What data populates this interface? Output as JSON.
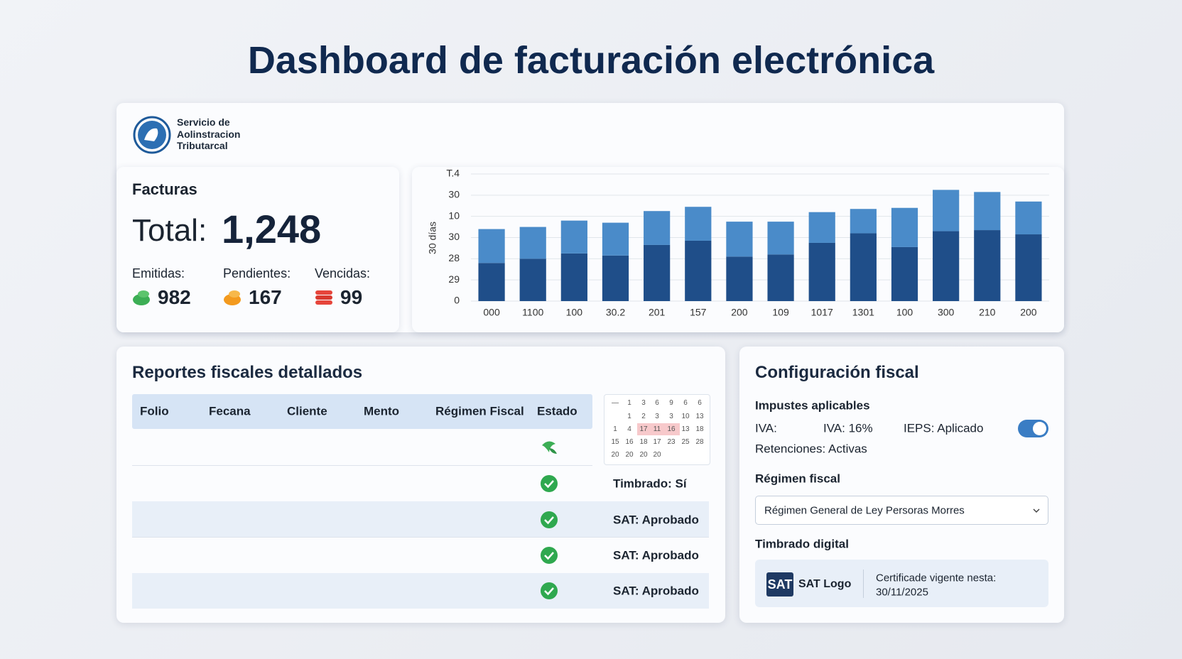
{
  "title": "Dashboard de facturación electrónica",
  "logo": {
    "lines": [
      "Servicio de",
      "Aolinstracion",
      "Tributarcal"
    ]
  },
  "kpi": {
    "title": "Facturas",
    "total_label": "Total:",
    "total": "1,248",
    "items": [
      {
        "label": "Emitidas:",
        "value": 982
      },
      {
        "label": "Pendientes:",
        "value": 167
      },
      {
        "label": "Vencidas:",
        "value": 99
      }
    ]
  },
  "chart_data": {
    "type": "stacked_bar",
    "y_label": "30 días",
    "categories": [
      "000",
      "1100",
      "100",
      "30.2",
      "201",
      "157",
      "200",
      "109",
      "1017",
      "1301",
      "100",
      "300",
      "210",
      "200"
    ],
    "series": [
      {
        "color": "#1f4e89",
        "values": [
          1.8,
          2.0,
          2.25,
          2.15,
          2.65,
          2.85,
          2.1,
          2.2,
          2.75,
          3.2,
          2.55,
          3.3,
          3.35,
          3.15
        ]
      },
      {
        "color": "#4a8bc9",
        "values": [
          1.6,
          1.5,
          1.55,
          1.55,
          1.6,
          1.6,
          1.65,
          1.55,
          1.45,
          1.15,
          1.85,
          1.95,
          1.8,
          1.55
        ]
      }
    ],
    "ylim": [
      0,
      6
    ],
    "yticks": [
      0,
      {
        "value": 1,
        "label": "29"
      },
      {
        "value": 2,
        "label": "28"
      },
      {
        "value": 3,
        "label": "30"
      },
      {
        "value": 4,
        "label": "10"
      },
      {
        "value": 5,
        "label": "30"
      },
      {
        "value": 6,
        "label": "T.4"
      }
    ],
    "grid": true
  },
  "reports": {
    "title": "Reportes fiscales detallados",
    "headers": [
      "Folio",
      "Fecana",
      "Cliente",
      "Mento",
      "Régimen Fiscal",
      "Estado"
    ],
    "rows": [
      {
        "status": null
      },
      {
        "status": "Timbrado: Sí"
      },
      {
        "status": "SAT: Aprobado"
      },
      {
        "status": "SAT: Aprobado"
      },
      {
        "status": "SAT: Aprobado"
      }
    ],
    "calendar": [
      [
        "—",
        "1",
        "3",
        "6",
        "9",
        "6",
        "6"
      ],
      [
        "",
        "1",
        "2",
        "3",
        "3",
        "10",
        "13"
      ],
      [
        "1",
        "4",
        "17",
        "11",
        "16",
        "13",
        "18"
      ],
      [
        "15",
        "16",
        "18",
        "17",
        "23",
        "25",
        "28"
      ],
      [
        "20",
        "20",
        "20",
        "20"
      ]
    ]
  },
  "config": {
    "title": "Configuración fiscal",
    "taxes_title": "Impustes aplicables",
    "iva_label": "IVA:",
    "iva_value": "IVA: 16%",
    "ieps": "IEPS: Aplicado",
    "retenciones": "Retenciones: Activas",
    "regimen_title": "Régimen fiscal",
    "regimen_value": "Régimen General de Ley Persoras Morres",
    "timbrado_title": "Timbrado digital",
    "sat_badge": "SAT",
    "sat_logo": "SAT Logo",
    "cert_lines": [
      "Certificade vigente nesta:",
      "30/11/2025"
    ]
  }
}
